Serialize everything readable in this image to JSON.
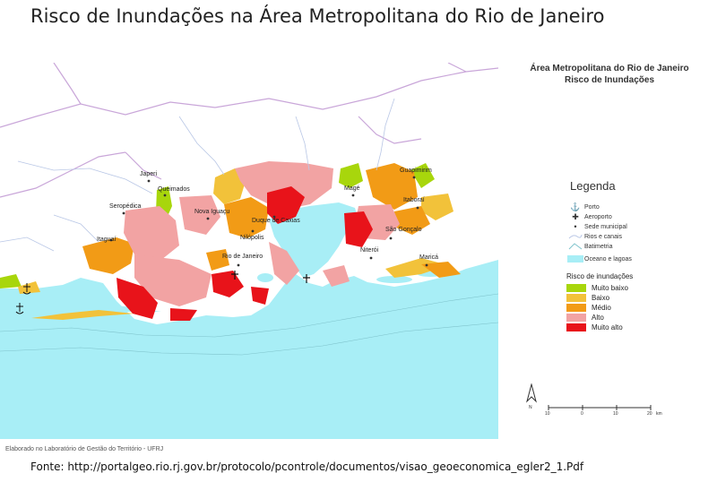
{
  "slide": {
    "title": "Risco de Inundações na Área Metropolitana do Rio de Janeiro",
    "source": "Fonte: http://portalgeo.rio.rj.gov.br/protocolo/pcontrole/documentos/visao_geoeconomica_egler2_1.Pdf"
  },
  "map": {
    "title_line1": "Área Metropolitana do Rio de Janeiro",
    "title_line2": "Risco de Inundações",
    "credit": "Elaborado no Laboratório de Gestão do Território - UFRJ",
    "cities": [
      {
        "name": "Japeri"
      },
      {
        "name": "Queimados"
      },
      {
        "name": "Seropédica"
      },
      {
        "name": "Nova Iguaçu"
      },
      {
        "name": "Duque de Caxias"
      },
      {
        "name": "Magé"
      },
      {
        "name": "Guapimirim"
      },
      {
        "name": "Itaboraí"
      },
      {
        "name": "Itaguaí"
      },
      {
        "name": "Nilópolis"
      },
      {
        "name": "São Gonçalo"
      },
      {
        "name": "Niterói"
      },
      {
        "name": "Rio de Janeiro"
      },
      {
        "name": "Maricá"
      }
    ]
  },
  "legend": {
    "title": "Legenda",
    "items": [
      {
        "icon": "anchor-icon",
        "label": "Porto"
      },
      {
        "icon": "airport-icon",
        "label": "Aeroporto"
      },
      {
        "icon": "dot-icon",
        "label": "Sede municipal"
      },
      {
        "icon": "river-icon",
        "label": "Rios e canais"
      },
      {
        "icon": "bathymetry-icon",
        "label": "Batimetria"
      },
      {
        "icon": "ocean-swatch",
        "label": "Oceano e lagoas",
        "color": "#a8eef6"
      }
    ],
    "risk_title": "Risco de inundações",
    "risk_levels": [
      {
        "label": "Muito baixo",
        "color": "#a8d60c"
      },
      {
        "label": "Baixo",
        "color": "#f2c23a"
      },
      {
        "label": "Médio",
        "color": "#f29b16"
      },
      {
        "label": "Alto",
        "color": "#f2a3a3"
      },
      {
        "label": "Muito alto",
        "color": "#e8131a"
      }
    ]
  },
  "north_arrow": {
    "label": "N"
  },
  "scale_bar": {
    "ticks": [
      "10",
      "0",
      "10",
      "20"
    ],
    "unit": "km"
  },
  "colors": {
    "ocean": "#a8eef6",
    "land": "#ffffff",
    "boundary": "#c9a6d9",
    "river": "#b9c7e6"
  }
}
